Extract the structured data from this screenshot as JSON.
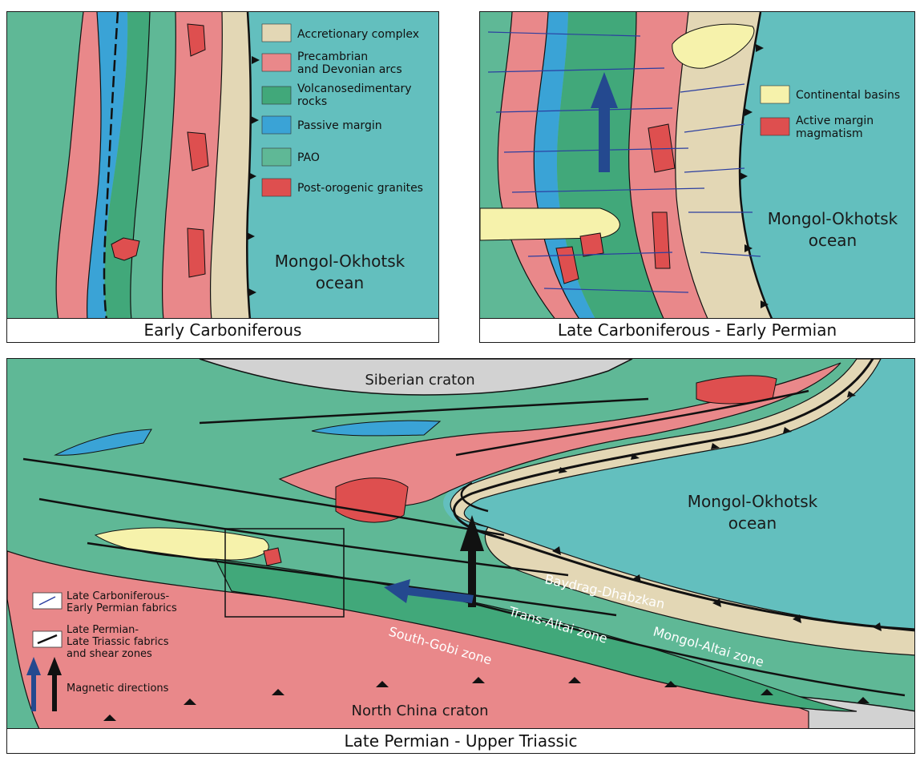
{
  "panels": {
    "early": {
      "caption": "Early Carboniferous",
      "ocean_label": [
        "Mongol-Okhotsk",
        "ocean"
      ],
      "legend": [
        {
          "key": "accretionary",
          "lines": [
            "Accretionary complex"
          ]
        },
        {
          "key": "arcs",
          "lines": [
            "Precambrian",
            "and Devonian arcs"
          ]
        },
        {
          "key": "volcano",
          "lines": [
            "Volcanosedimentary",
            "rocks"
          ]
        },
        {
          "key": "passive",
          "lines": [
            "Passive margin"
          ]
        },
        {
          "key": "pao",
          "lines": [
            "PAO"
          ]
        },
        {
          "key": "granites",
          "lines": [
            "Post-orogenic granites"
          ]
        }
      ]
    },
    "late": {
      "caption": "Late Carboniferous - Early Permian",
      "ocean_label": [
        "Mongol-Okhotsk",
        "ocean"
      ],
      "legend": [
        {
          "key": "basins",
          "lines": [
            "Continental basins"
          ]
        },
        {
          "key": "magmatism",
          "lines": [
            "Active margin",
            "magmatism"
          ]
        }
      ]
    },
    "permian": {
      "caption": "Late Permian - Upper Triassic",
      "ocean_label": [
        "Mongol-Okhotsk",
        "ocean"
      ],
      "siberian": "Siberian craton",
      "north_china": "North China craton",
      "zones": {
        "baydrag": "Baydrag-Dhabzkan",
        "trans_altai": "Trans-Altai zone",
        "mongol_altai": "Mongol-Altai zone",
        "south_gobi": "South-Gobi zone"
      },
      "legend": [
        {
          "key": "lc_fabrics",
          "lines": [
            "Late Carboniferous-",
            "Early Permian fabrics"
          ]
        },
        {
          "key": "lp_fabrics",
          "lines": [
            "Late Permian-",
            "Late Triassic fabrics",
            "and shear zones"
          ]
        },
        {
          "key": "magnetic",
          "lines": [
            "Magnetic directions"
          ]
        }
      ]
    }
  },
  "colors": {
    "ocean": "#63bfbe",
    "pao": "#5fb896",
    "volcano": "#41a87a",
    "passive": "#3aa3d6",
    "arcs": "#e9888a",
    "granite": "#de4f4f",
    "accretionary": "#e3d7b5",
    "basin": "#f6f2ab",
    "craton": "#d2d2d2",
    "blue_arrow": "#24498f",
    "fabric": "#2b3ea0"
  }
}
